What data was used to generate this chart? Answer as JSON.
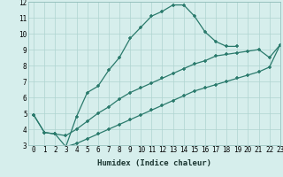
{
  "line1_x": [
    0,
    1,
    2,
    3,
    4,
    5,
    6,
    7,
    8,
    9,
    10,
    11,
    12,
    13,
    14,
    15,
    16,
    17,
    18,
    19
  ],
  "line1_y": [
    4.9,
    3.8,
    3.7,
    2.9,
    4.8,
    6.3,
    6.7,
    7.7,
    8.5,
    9.7,
    10.4,
    11.1,
    11.4,
    11.8,
    11.8,
    11.1,
    10.1,
    9.5,
    9.2,
    9.2
  ],
  "line2_x": [
    0,
    1,
    2,
    3,
    4,
    5,
    6,
    7,
    8,
    9,
    10,
    11,
    12,
    13,
    14,
    15,
    16,
    17,
    18,
    19,
    20,
    21,
    22,
    23
  ],
  "line2_y": [
    4.9,
    3.8,
    3.7,
    3.6,
    4.0,
    4.5,
    5.0,
    5.4,
    5.9,
    6.3,
    6.6,
    6.9,
    7.2,
    7.5,
    7.8,
    8.1,
    8.3,
    8.6,
    8.7,
    8.8,
    8.9,
    9.0,
    8.5,
    9.3
  ],
  "line3_x": [
    3,
    4,
    5,
    6,
    7,
    8,
    9,
    10,
    11,
    12,
    13,
    14,
    15,
    16,
    17,
    18,
    19,
    20,
    21,
    22,
    23
  ],
  "line3_y": [
    2.9,
    3.1,
    3.4,
    3.7,
    4.0,
    4.3,
    4.6,
    4.9,
    5.2,
    5.5,
    5.8,
    6.1,
    6.4,
    6.6,
    6.8,
    7.0,
    7.2,
    7.4,
    7.6,
    7.9,
    9.3
  ],
  "color": "#2a7a6c",
  "bg_color": "#d6eeec",
  "grid_color": "#aed4d0",
  "xlabel": "Humidex (Indice chaleur)",
  "xlim": [
    -0.5,
    23
  ],
  "ylim": [
    3,
    12
  ],
  "xticks": [
    0,
    1,
    2,
    3,
    4,
    5,
    6,
    7,
    8,
    9,
    10,
    11,
    12,
    13,
    14,
    15,
    16,
    17,
    18,
    19,
    20,
    21,
    22,
    23
  ],
  "yticks": [
    3,
    4,
    5,
    6,
    7,
    8,
    9,
    10,
    11,
    12
  ],
  "tick_fontsize": 5.5,
  "xlabel_fontsize": 6.5
}
